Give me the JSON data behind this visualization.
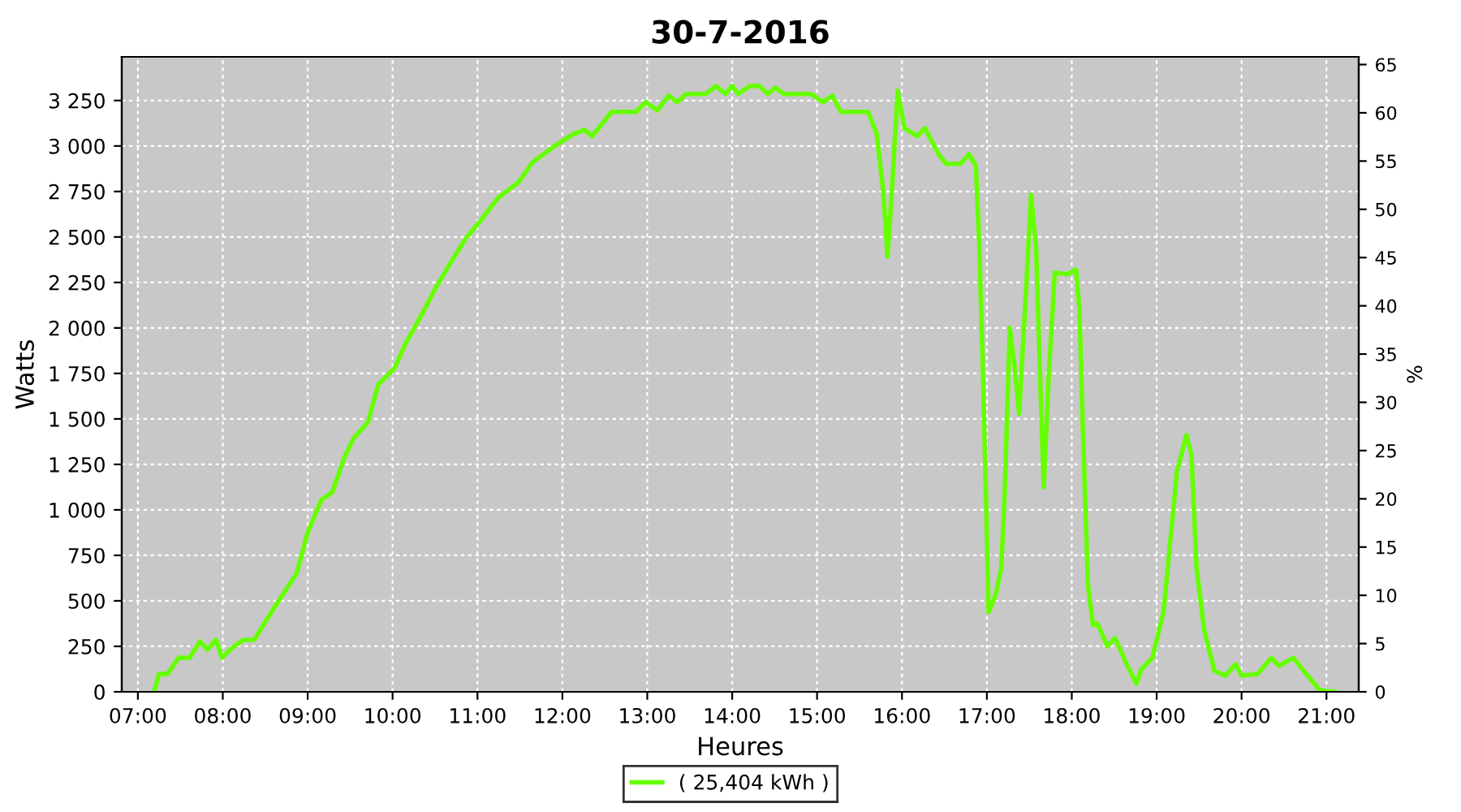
{
  "chart_data": {
    "type": "line",
    "title": "30-7-2016",
    "xlabel": "Heures",
    "ylabel": "Watts",
    "y2label": "%",
    "xlim": [
      6.81,
      21.38
    ],
    "ylim": [
      0,
      3490
    ],
    "y2lim": [
      0,
      65.8
    ],
    "xticks": [
      {
        "value": 7,
        "label": "07:00"
      },
      {
        "value": 8,
        "label": "08:00"
      },
      {
        "value": 9,
        "label": "09:00"
      },
      {
        "value": 10,
        "label": "10:00"
      },
      {
        "value": 11,
        "label": "11:00"
      },
      {
        "value": 12,
        "label": "12:00"
      },
      {
        "value": 13,
        "label": "13:00"
      },
      {
        "value": 14,
        "label": "14:00"
      },
      {
        "value": 15,
        "label": "15:00"
      },
      {
        "value": 16,
        "label": "16:00"
      },
      {
        "value": 17,
        "label": "17:00"
      },
      {
        "value": 18,
        "label": "18:00"
      },
      {
        "value": 19,
        "label": "19:00"
      },
      {
        "value": 20,
        "label": "20:00"
      },
      {
        "value": 21,
        "label": "21:00"
      }
    ],
    "yticks": [
      0,
      250,
      500,
      750,
      {
        "value": 1000,
        "label": "1 000"
      },
      {
        "value": 1250,
        "label": "1 250"
      },
      {
        "value": 1500,
        "label": "1 500"
      },
      {
        "value": 1750,
        "label": "1 750"
      },
      {
        "value": 2000,
        "label": "2 000"
      },
      {
        "value": 2250,
        "label": "2 250"
      },
      {
        "value": 2500,
        "label": "2 500"
      },
      {
        "value": 2750,
        "label": "2 750"
      },
      {
        "value": 3000,
        "label": "3 000"
      },
      {
        "value": 3250,
        "label": "3 250"
      }
    ],
    "y2ticks": [
      0,
      5,
      10,
      15,
      20,
      25,
      30,
      35,
      40,
      45,
      50,
      55,
      60,
      65
    ],
    "grid": true,
    "legend": "bottom",
    "marker": "none",
    "line_style": "solid",
    "series": [
      {
        "name": "( 25,404 kWh )",
        "color": "#66ff00",
        "x": [
          7.19,
          7.25,
          7.35,
          7.48,
          7.61,
          7.73,
          7.82,
          7.92,
          7.99,
          8.11,
          8.24,
          8.37,
          8.62,
          8.87,
          9.0,
          9.16,
          9.29,
          9.43,
          9.54,
          9.71,
          9.83,
          10.02,
          10.15,
          10.35,
          10.5,
          10.67,
          10.86,
          11.02,
          11.24,
          11.49,
          11.65,
          11.91,
          12.12,
          12.26,
          12.35,
          12.58,
          12.87,
          12.98,
          13.12,
          13.25,
          13.35,
          13.46,
          13.69,
          13.81,
          13.92,
          14.0,
          14.07,
          14.21,
          14.32,
          14.42,
          14.51,
          14.61,
          14.93,
          15.07,
          15.18,
          15.28,
          15.6,
          15.7,
          15.78,
          15.83,
          15.87,
          15.95,
          16.03,
          16.18,
          16.27,
          16.43,
          16.52,
          16.69,
          16.79,
          16.87,
          16.91,
          16.95,
          16.99,
          17.02,
          17.1,
          17.17,
          17.21,
          17.27,
          17.33,
          17.38,
          17.46,
          17.52,
          17.58,
          17.63,
          17.67,
          17.73,
          17.8,
          17.95,
          18.05,
          18.09,
          18.13,
          18.19,
          18.25,
          18.3,
          18.42,
          18.51,
          18.63,
          18.76,
          18.82,
          18.95,
          19.08,
          19.24,
          19.35,
          19.41,
          19.47,
          19.56,
          19.68,
          19.81,
          19.93,
          20.0,
          20.19,
          20.35,
          20.44,
          20.61,
          20.73,
          20.92,
          21.1
        ],
        "values": [
          0,
          98,
          98,
          187,
          187,
          277,
          232,
          286,
          187,
          241,
          286,
          286,
          473,
          652,
          875,
          1054,
          1098,
          1286,
          1393,
          1482,
          1688,
          1777,
          1911,
          2080,
          2214,
          2348,
          2491,
          2580,
          2714,
          2804,
          2911,
          3000,
          3063,
          3089,
          3054,
          3188,
          3188,
          3241,
          3196,
          3277,
          3241,
          3286,
          3286,
          3330,
          3286,
          3330,
          3286,
          3330,
          3330,
          3286,
          3321,
          3286,
          3286,
          3241,
          3277,
          3188,
          3188,
          3071,
          2750,
          2393,
          2670,
          3304,
          3098,
          3054,
          3098,
          2955,
          2902,
          2902,
          2955,
          2893,
          2464,
          1813,
          1063,
          438,
          527,
          679,
          1098,
          2000,
          1777,
          1527,
          2196,
          2732,
          2438,
          1688,
          1125,
          1750,
          2304,
          2295,
          2321,
          2107,
          1455,
          589,
          366,
          375,
          250,
          295,
          170,
          45,
          125,
          187,
          438,
          1214,
          1411,
          1304,
          679,
          339,
          116,
          89,
          152,
          89,
          98,
          187,
          143,
          187,
          116,
          9,
          0
        ]
      }
    ]
  }
}
